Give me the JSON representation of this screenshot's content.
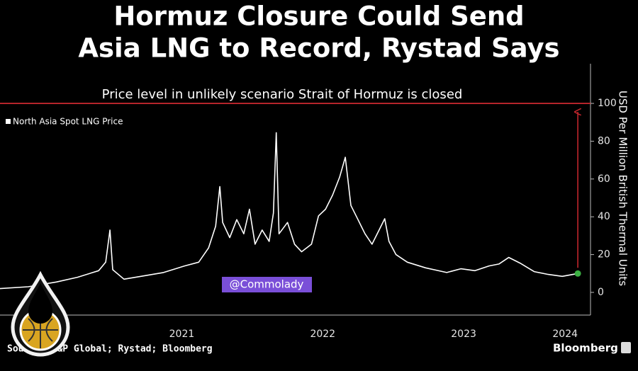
{
  "chart_data": {
    "type": "line",
    "title": [
      "Hormuz Closure Could Send",
      "Asia LNG to Record, Rystad Says"
    ],
    "y_label": "USD Per Million British Thermal Units",
    "source": "Source: S&P Global; Rystad; Bloomberg",
    "brand": "Bloomberg",
    "watermark": "@Commolady",
    "reference": {
      "value": 100,
      "label": "Price level in unlikely scenario Strait of Hormuz is closed",
      "color": "#c0262d"
    },
    "xlim": [
      2020.21,
      2024.4
    ],
    "xticks": [
      {
        "value": 2021.5,
        "label": "2021"
      },
      {
        "value": 2022.5,
        "label": "2022"
      },
      {
        "value": 2023.5,
        "label": "2023"
      },
      {
        "value": 2024.22,
        "label": "2024"
      }
    ],
    "ylim": [
      -12,
      121
    ],
    "yticks": [
      0,
      20,
      40,
      60,
      80,
      100
    ],
    "x": [
      2020.21,
      2020.41,
      2020.61,
      2020.76,
      2020.91,
      2020.96,
      2020.99,
      2021.01,
      2021.09,
      2021.21,
      2021.37,
      2021.52,
      2021.62,
      2021.69,
      2021.74,
      2021.77,
      2021.79,
      2021.84,
      2021.89,
      2021.94,
      2021.98,
      2022.02,
      2022.07,
      2022.12,
      2022.15,
      2022.17,
      2022.19,
      2022.25,
      2022.3,
      2022.35,
      2022.42,
      2022.47,
      2022.52,
      2022.57,
      2022.62,
      2022.66,
      2022.7,
      2022.75,
      2022.8,
      2022.85,
      2022.9,
      2022.94,
      2022.97,
      2023.02,
      2023.1,
      2023.23,
      2023.38,
      2023.48,
      2023.58,
      2023.68,
      2023.75,
      2023.82,
      2023.9,
      2024.0,
      2024.1,
      2024.2,
      2024.31
    ],
    "series": [
      {
        "name": "North Asia Spot LNG Price",
        "color": "#ffffff",
        "marker_color": "#3cb043",
        "values": [
          2,
          3,
          5.5,
          8,
          11.5,
          16,
          33,
          12,
          7,
          8.5,
          10.5,
          14,
          16,
          23.5,
          35,
          56,
          37,
          29,
          38.5,
          31,
          44,
          25.5,
          33,
          27,
          42,
          84.5,
          31,
          37,
          25.5,
          21.5,
          25.5,
          40.5,
          44,
          51.5,
          61,
          71.5,
          46,
          38.5,
          31,
          25.5,
          33,
          39,
          27,
          20,
          16,
          13,
          10.5,
          12.5,
          11.5,
          14,
          15,
          18.5,
          15.5,
          11,
          9.5,
          8.5,
          10
        ]
      }
    ]
  }
}
